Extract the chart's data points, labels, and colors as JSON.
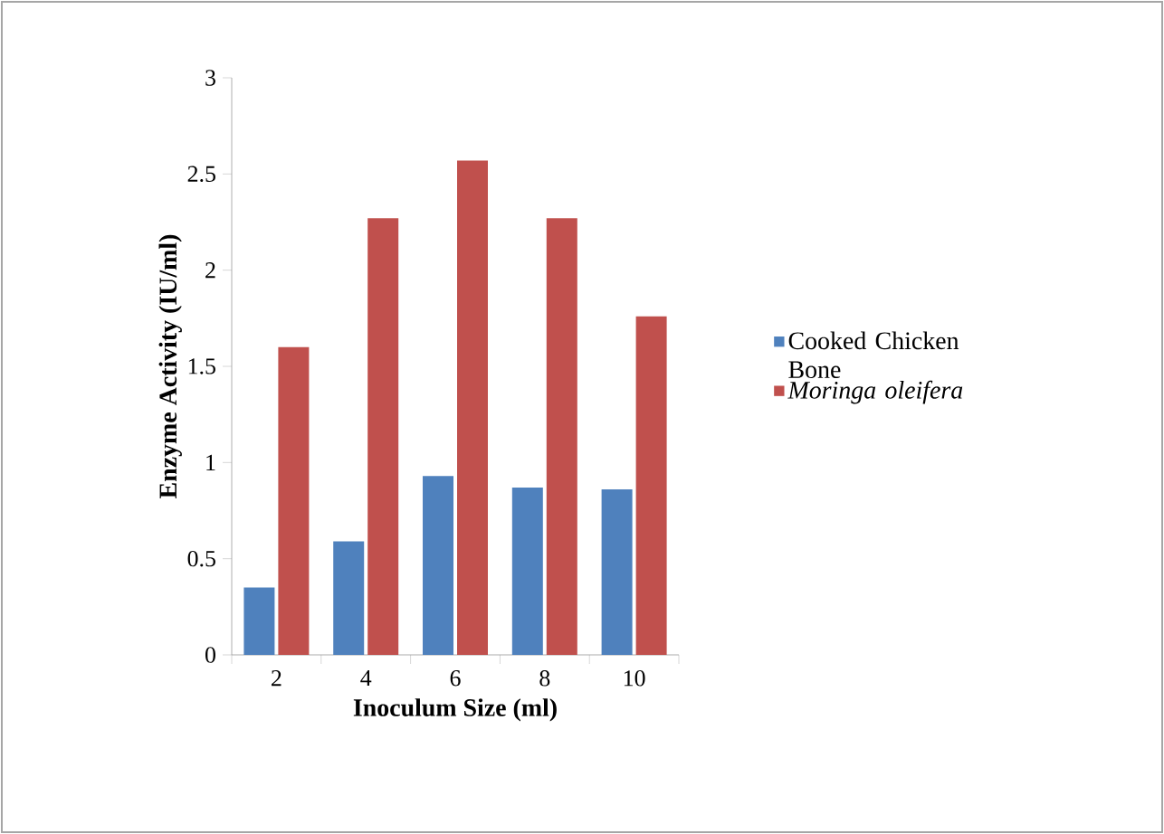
{
  "chart_data": {
    "type": "bar",
    "xlabel": "Inoculum Size (ml)",
    "ylabel": "Enzyme Activity (IU/ml)",
    "categories": [
      "2",
      "4",
      "6",
      "8",
      "10"
    ],
    "series": [
      {
        "name": "Cooked Chicken Bone",
        "color": "#4f81bd",
        "values": [
          0.35,
          0.59,
          0.93,
          0.87,
          0.86
        ]
      },
      {
        "name": "Moringa oleifera",
        "color": "#c0504d",
        "values": [
          1.6,
          2.27,
          2.57,
          2.27,
          1.76
        ]
      }
    ],
    "ylim": [
      0,
      3
    ],
    "yticks": [
      0,
      0.5,
      1,
      1.5,
      2,
      2.5,
      3
    ],
    "grid": false,
    "legend": "right"
  }
}
